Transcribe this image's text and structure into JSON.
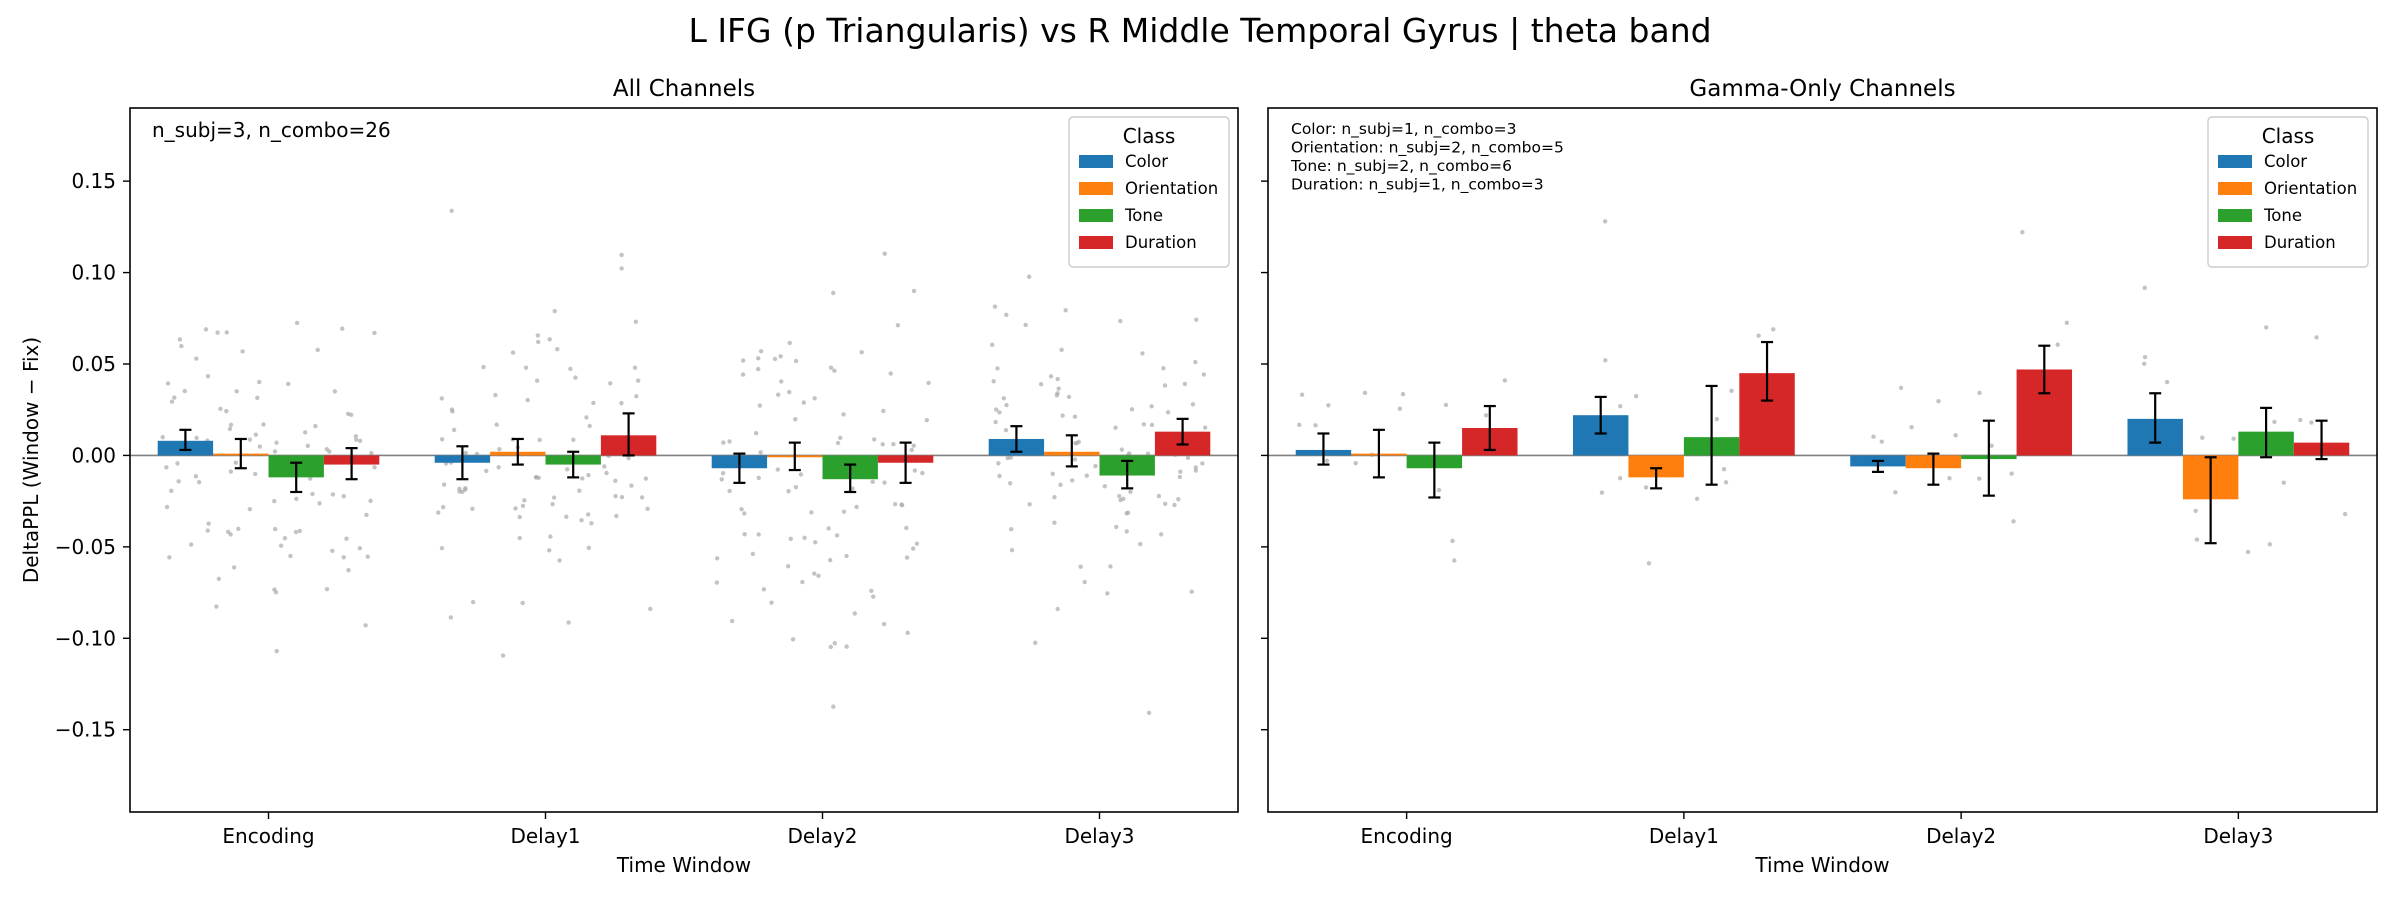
{
  "figure": {
    "suptitle": "L IFG (p Triangularis) vs R Middle Temporal Gyrus  |  theta band"
  },
  "colors": {
    "Color": "#1f77b4",
    "Orientation": "#ff7f0e",
    "Tone": "#2ca02c",
    "Duration": "#d62728",
    "points": "#a9a9a9",
    "zero_line": "#808080"
  },
  "chart_data": [
    {
      "type": "bar",
      "title": "All Channels",
      "xlabel": "Time Window",
      "ylabel": "DeltaPPL (Window − Fix)",
      "ylim": [
        -0.195,
        0.19
      ],
      "yticks": [
        -0.15,
        -0.1,
        -0.05,
        0.0,
        0.05,
        0.1,
        0.15
      ],
      "ytick_labels": [
        "−0.15",
        "−0.10",
        "−0.05",
        "0.00",
        "0.05",
        "0.10",
        "0.15"
      ],
      "categories": [
        "Encoding",
        "Delay1",
        "Delay2",
        "Delay3"
      ],
      "legend": {
        "title": "Class",
        "placement": "upper right"
      },
      "annotation": "n_subj=3, n_combo=26",
      "grid": false,
      "zero_line": true,
      "series": [
        {
          "name": "Color",
          "values": [
            0.008,
            -0.004,
            -0.007,
            0.009
          ],
          "err_low": [
            0.003,
            -0.013,
            -0.015,
            0.002
          ],
          "err_high": [
            0.014,
            0.005,
            0.001,
            0.016
          ]
        },
        {
          "name": "Orientation",
          "values": [
            0.001,
            0.002,
            -0.001,
            0.002
          ],
          "err_low": [
            -0.007,
            -0.005,
            -0.008,
            -0.006
          ],
          "err_high": [
            0.009,
            0.009,
            0.007,
            0.011
          ]
        },
        {
          "name": "Tone",
          "values": [
            -0.012,
            -0.005,
            -0.013,
            -0.011
          ],
          "err_low": [
            -0.02,
            -0.012,
            -0.02,
            -0.018
          ],
          "err_high": [
            -0.004,
            0.002,
            -0.005,
            -0.003
          ]
        },
        {
          "name": "Duration",
          "values": [
            -0.005,
            0.011,
            -0.004,
            0.013
          ],
          "err_low": [
            -0.013,
            0.0,
            -0.015,
            0.006
          ],
          "err_high": [
            0.004,
            0.023,
            0.007,
            0.02
          ]
        }
      ]
    },
    {
      "type": "bar",
      "title": "Gamma-Only Channels",
      "xlabel": "Time Window",
      "ylabel": "",
      "ylim": [
        -0.195,
        0.19
      ],
      "yticks": [
        -0.15,
        -0.1,
        -0.05,
        0.0,
        0.05,
        0.1,
        0.15
      ],
      "ytick_labels": [],
      "categories": [
        "Encoding",
        "Delay1",
        "Delay2",
        "Delay3"
      ],
      "legend": {
        "title": "Class",
        "placement": "upper right"
      },
      "annotation_lines": [
        "Color: n_subj=1, n_combo=3",
        "Orientation: n_subj=2, n_combo=5",
        "Tone: n_subj=2, n_combo=6",
        "Duration: n_subj=1, n_combo=3"
      ],
      "grid": false,
      "zero_line": true,
      "series": [
        {
          "name": "Color",
          "values": [
            0.003,
            0.022,
            -0.006,
            0.02
          ],
          "err_low": [
            -0.005,
            0.012,
            -0.009,
            0.007
          ],
          "err_high": [
            0.012,
            0.032,
            -0.003,
            0.034
          ]
        },
        {
          "name": "Orientation",
          "values": [
            0.001,
            -0.012,
            -0.007,
            -0.024
          ],
          "err_low": [
            -0.012,
            -0.018,
            -0.016,
            -0.048
          ],
          "err_high": [
            0.014,
            -0.007,
            0.001,
            -0.001
          ]
        },
        {
          "name": "Tone",
          "values": [
            -0.007,
            0.01,
            -0.002,
            0.013
          ],
          "err_low": [
            -0.023,
            -0.016,
            -0.022,
            -0.001
          ],
          "err_high": [
            0.007,
            0.038,
            0.019,
            0.026
          ]
        },
        {
          "name": "Duration",
          "values": [
            0.015,
            0.045,
            0.047,
            0.007
          ],
          "err_low": [
            0.003,
            0.03,
            0.034,
            -0.002
          ],
          "err_high": [
            0.027,
            0.062,
            0.06,
            0.019
          ]
        }
      ]
    }
  ]
}
